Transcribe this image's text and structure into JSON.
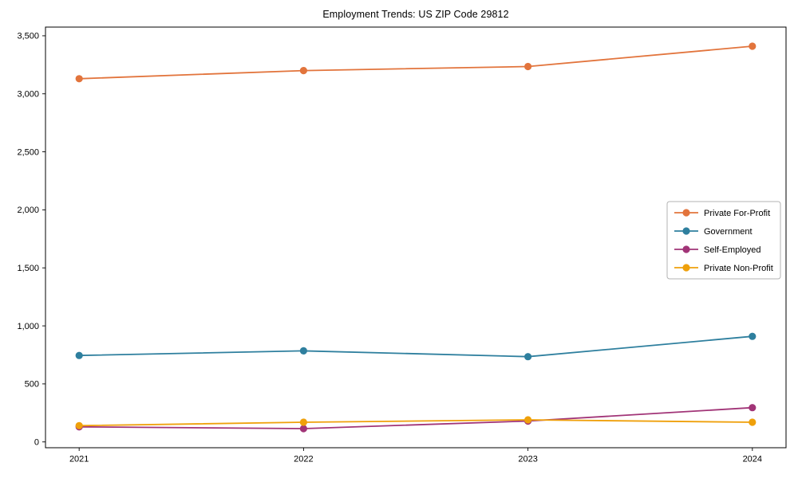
{
  "chart_data": {
    "type": "line",
    "title": "Employment Trends: US ZIP Code 29812",
    "categories": [
      "2021",
      "2022",
      "2023",
      "2024"
    ],
    "series": [
      {
        "name": "Private For-Profit",
        "color": "#e2743c",
        "values": [
          3130,
          3200,
          3235,
          3410
        ]
      },
      {
        "name": "Government",
        "color": "#2e7f9e",
        "values": [
          745,
          785,
          735,
          910
        ]
      },
      {
        "name": "Self-Employed",
        "color": "#a13477",
        "values": [
          130,
          115,
          180,
          295
        ]
      },
      {
        "name": "Private Non-Profit",
        "color": "#efa00b",
        "values": [
          140,
          170,
          190,
          170
        ]
      }
    ],
    "xlabel": "",
    "ylabel": "",
    "ylim": [
      -50,
      3575
    ],
    "yticks": [
      0,
      500,
      1000,
      1500,
      2000,
      2500,
      3000,
      3500
    ],
    "ytick_labels": [
      "0",
      "500",
      "1,000",
      "1,500",
      "2,000",
      "2,500",
      "3,000",
      "3,500"
    ],
    "grid": false,
    "legend_position": "center-right",
    "marker": "circle",
    "axis_color": "#000000",
    "legend_border_color": "#b3b3b3"
  }
}
